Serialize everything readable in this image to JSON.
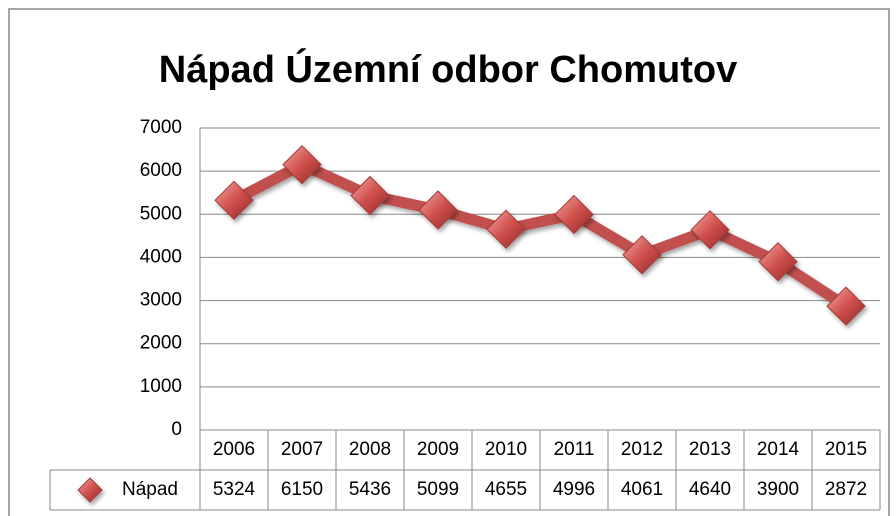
{
  "chart_data": {
    "type": "line",
    "title": "Nápad Územní odbor Chomutov",
    "categories": [
      "2006",
      "2007",
      "2008",
      "2009",
      "2010",
      "2011",
      "2012",
      "2013",
      "2014",
      "2015"
    ],
    "series": [
      {
        "name": "Nápad",
        "color": "#c0504d",
        "values": [
          5324,
          6150,
          5436,
          5099,
          4655,
          4996,
          4061,
          4640,
          3900,
          2872
        ]
      }
    ],
    "ylim": [
      0,
      7000
    ],
    "yticks": [
      0,
      1000,
      2000,
      3000,
      4000,
      5000,
      6000,
      7000
    ],
    "grid": true
  }
}
